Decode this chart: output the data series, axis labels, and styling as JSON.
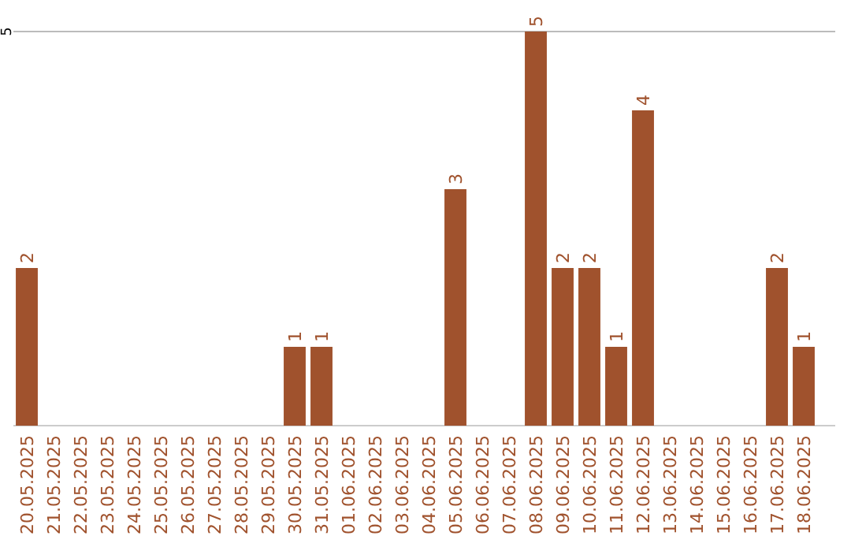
{
  "chart_data": {
    "type": "bar",
    "categories": [
      "20.05.2025",
      "21.05.2025",
      "22.05.2025",
      "23.05.2025",
      "24.05.2025",
      "25.05.2025",
      "26.05.2025",
      "27.05.2025",
      "28.05.2025",
      "29.05.2025",
      "30.05.2025",
      "31.05.2025",
      "01.06.2025",
      "02.06.2025",
      "03.06.2025",
      "04.06.2025",
      "05.06.2025",
      "06.06.2025",
      "07.06.2025",
      "08.06.2025",
      "09.06.2025",
      "10.06.2025",
      "11.06.2025",
      "12.06.2025",
      "13.06.2025",
      "14.06.2025",
      "15.06.2025",
      "16.06.2025",
      "17.06.2025",
      "18.06.2025"
    ],
    "values": [
      2,
      0,
      0,
      0,
      0,
      0,
      0,
      0,
      0,
      0,
      1,
      1,
      0,
      0,
      0,
      0,
      3,
      0,
      0,
      5,
      2,
      2,
      1,
      4,
      0,
      0,
      0,
      0,
      2,
      1
    ],
    "value_labels": [
      "2",
      null,
      null,
      null,
      null,
      null,
      null,
      null,
      null,
      null,
      "1",
      "1",
      null,
      null,
      null,
      null,
      "3",
      null,
      null,
      "5",
      "2",
      "2",
      "1",
      "4",
      null,
      null,
      null,
      null,
      "2",
      "1"
    ],
    "color": "#a0522d",
    "ylim": [
      0,
      5
    ],
    "yticks": [
      5
    ],
    "ref_lines": [
      {
        "axis": "y",
        "value": 5,
        "color": "#bbbbbb"
      }
    ]
  }
}
